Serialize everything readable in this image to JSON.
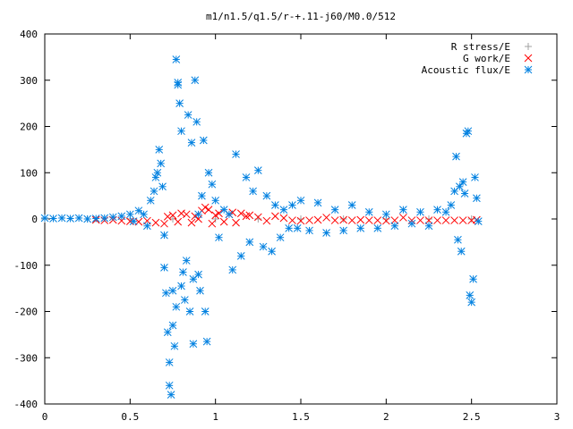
{
  "chart_data": {
    "type": "scatter",
    "title": "m1/n1.5/q1.5/r-+.11-j60/M0.0/512",
    "xlabel": "",
    "ylabel": "",
    "xlim": [
      0,
      3
    ],
    "ylim": [
      -400,
      400
    ],
    "xticks": [
      0,
      0.5,
      1,
      1.5,
      2,
      2.5,
      3
    ],
    "xtick_labels": [
      "0",
      "0.5",
      "1",
      "1.5",
      "2",
      "2.5",
      "3"
    ],
    "yticks": [
      -400,
      -300,
      -200,
      -100,
      0,
      100,
      200,
      300,
      400
    ],
    "ytick_labels": [
      "-400",
      "-300",
      "-200",
      "-100",
      "0",
      "100",
      "200",
      "300",
      "400"
    ],
    "grid": false,
    "legend_position": "top-right",
    "series": [
      {
        "name": "R stress/E",
        "marker": "plus",
        "color": "#a0a0a0",
        "description": "values near zero across x range",
        "x": [
          0.0,
          0.25,
          0.5,
          0.75,
          1.0,
          1.25,
          1.5,
          1.75,
          2.0,
          2.25,
          2.5
        ],
        "y": [
          0,
          0,
          0,
          0,
          0,
          0,
          0,
          0,
          0,
          0,
          0
        ]
      },
      {
        "name": "G work/E",
        "marker": "cross",
        "color": "#ff0000",
        "x": [
          0.3,
          0.35,
          0.4,
          0.45,
          0.5,
          0.55,
          0.6,
          0.65,
          0.7,
          0.72,
          0.75,
          0.78,
          0.8,
          0.83,
          0.86,
          0.88,
          0.9,
          0.92,
          0.94,
          0.96,
          0.98,
          1.0,
          1.02,
          1.05,
          1.08,
          1.1,
          1.12,
          1.15,
          1.18,
          1.2,
          1.25,
          1.3,
          1.35,
          1.4,
          1.45,
          1.5,
          1.55,
          1.6,
          1.65,
          1.7,
          1.75,
          1.8,
          1.85,
          1.9,
          1.95,
          2.0,
          2.05,
          2.1,
          2.15,
          2.2,
          2.25,
          2.3,
          2.35,
          2.4,
          2.45,
          2.5,
          2.53
        ],
        "y": [
          -2,
          -3,
          -2,
          -4,
          -5,
          -6,
          -4,
          -8,
          -10,
          5,
          8,
          -6,
          12,
          10,
          -8,
          6,
          0,
          18,
          25,
          20,
          -10,
          8,
          12,
          -6,
          10,
          14,
          -8,
          12,
          6,
          8,
          4,
          -4,
          6,
          2,
          -3,
          -4,
          -3,
          -2,
          3,
          -3,
          -2,
          -3,
          -2,
          -3,
          -3,
          -4,
          -3,
          3,
          -3,
          -3,
          -3,
          -3,
          -3,
          -3,
          -3,
          -3,
          -2
        ]
      },
      {
        "name": "Acoustic flux/E",
        "marker": "star",
        "color": "#0080e0",
        "x": [
          0.0,
          0.05,
          0.1,
          0.15,
          0.2,
          0.25,
          0.3,
          0.35,
          0.4,
          0.45,
          0.5,
          0.52,
          0.55,
          0.58,
          0.6,
          0.62,
          0.64,
          0.65,
          0.66,
          0.67,
          0.68,
          0.69,
          0.7,
          0.7,
          0.71,
          0.72,
          0.73,
          0.73,
          0.74,
          0.75,
          0.75,
          0.76,
          0.77,
          0.77,
          0.78,
          0.78,
          0.79,
          0.8,
          0.8,
          0.81,
          0.82,
          0.83,
          0.84,
          0.85,
          0.86,
          0.87,
          0.87,
          0.88,
          0.89,
          0.9,
          0.9,
          0.91,
          0.92,
          0.93,
          0.94,
          0.95,
          0.96,
          0.98,
          1.0,
          1.02,
          1.05,
          1.08,
          1.1,
          1.12,
          1.15,
          1.18,
          1.2,
          1.22,
          1.25,
          1.28,
          1.3,
          1.33,
          1.35,
          1.38,
          1.4,
          1.43,
          1.45,
          1.48,
          1.5,
          1.55,
          1.6,
          1.65,
          1.7,
          1.75,
          1.8,
          1.85,
          1.9,
          1.95,
          2.0,
          2.05,
          2.1,
          2.15,
          2.2,
          2.25,
          2.3,
          2.35,
          2.38,
          2.4,
          2.41,
          2.42,
          2.43,
          2.44,
          2.45,
          2.46,
          2.47,
          2.48,
          2.49,
          2.5,
          2.51,
          2.52,
          2.53,
          2.54
        ],
        "y": [
          2,
          1,
          2,
          1,
          2,
          0,
          1,
          2,
          4,
          6,
          10,
          -5,
          18,
          10,
          -15,
          40,
          60,
          90,
          100,
          150,
          120,
          70,
          -35,
          -105,
          -160,
          -245,
          -310,
          -360,
          -380,
          -230,
          -155,
          -275,
          -190,
          345,
          295,
          290,
          250,
          -145,
          190,
          -115,
          -175,
          -90,
          225,
          -200,
          165,
          -270,
          -130,
          300,
          210,
          -120,
          10,
          -155,
          50,
          170,
          -200,
          -265,
          100,
          75,
          40,
          -40,
          20,
          10,
          -110,
          140,
          -80,
          90,
          -50,
          60,
          105,
          -60,
          50,
          -70,
          30,
          -40,
          20,
          -20,
          30,
          -20,
          40,
          -25,
          35,
          -30,
          20,
          -25,
          30,
          -20,
          15,
          -20,
          10,
          -15,
          20,
          -10,
          15,
          -15,
          20,
          15,
          30,
          60,
          135,
          -45,
          70,
          -70,
          80,
          55,
          185,
          190,
          -165,
          -180,
          -130,
          90,
          45,
          -5
        ]
      }
    ]
  }
}
